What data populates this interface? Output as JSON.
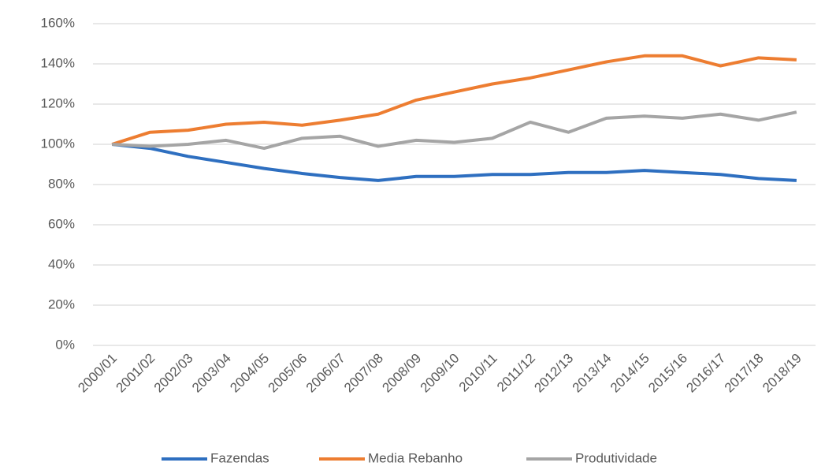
{
  "chart_data": {
    "type": "line",
    "categories": [
      "2000/01",
      "2001/02",
      "2002/03",
      "2003/04",
      "2004/05",
      "2005/06",
      "2006/07",
      "2007/08",
      "2008/09",
      "2009/10",
      "2010/11",
      "2011/12",
      "2012/13",
      "2013/14",
      "2014/15",
      "2015/16",
      "2016/17",
      "2017/18",
      "2018/19"
    ],
    "series": [
      {
        "name": "Fazendas",
        "color": "#2e6fc0",
        "values": [
          100,
          98,
          94,
          91,
          88,
          85.5,
          83.5,
          82,
          84,
          84,
          85,
          85,
          86,
          86,
          87,
          86,
          85,
          83,
          82
        ]
      },
      {
        "name": "Media Rebanho",
        "color": "#ed7d31",
        "values": [
          100,
          106,
          107,
          110,
          111,
          109.5,
          112,
          115,
          122,
          126,
          130,
          133,
          137,
          141,
          144,
          144,
          139,
          143,
          142
        ]
      },
      {
        "name": "Produtividade",
        "color": "#a5a5a5",
        "values": [
          100,
          99,
          100,
          102,
          98,
          103,
          104,
          99,
          102,
          101,
          103,
          111,
          106,
          113,
          114,
          113,
          115,
          112,
          116
        ]
      }
    ],
    "ylim": [
      0,
      160
    ],
    "yticks": [
      {
        "value": 0,
        "label": "0%"
      },
      {
        "value": 20,
        "label": "20%"
      },
      {
        "value": 40,
        "label": "40%"
      },
      {
        "value": 60,
        "label": "60%"
      },
      {
        "value": 80,
        "label": "80%"
      },
      {
        "value": 100,
        "label": "100%"
      },
      {
        "value": 120,
        "label": "120%"
      },
      {
        "value": 140,
        "label": "140%"
      },
      {
        "value": 160,
        "label": "160%"
      }
    ],
    "grid": true,
    "legend": "bottom"
  }
}
